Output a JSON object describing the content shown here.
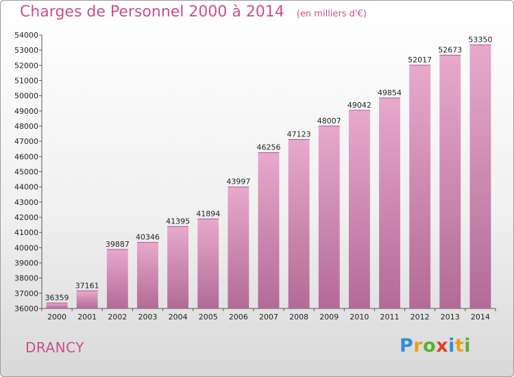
{
  "title": "Charges de Personnel 2000 à 2014",
  "unit_note": "(en milliers d'€)",
  "commune": "DRANCY",
  "logo": {
    "letters": [
      "P",
      "r",
      "o",
      "x",
      "i",
      "t",
      "i"
    ],
    "colors": [
      "#2a8fd6",
      "#e8a21a",
      "#58b030",
      "#e83a2a",
      "#2a8fd6",
      "#e8a21a",
      "#58b030"
    ]
  },
  "colors": {
    "title": "#c8508a",
    "bar_light": "#e8a9cc",
    "bar_dark": "#b26b96"
  },
  "chart_data": {
    "type": "bar",
    "title": "Charges de Personnel 2000 à 2014",
    "subtitle": "(en milliers d'€)",
    "categories": [
      "2000",
      "2001",
      "2002",
      "2003",
      "2004",
      "2005",
      "2006",
      "2007",
      "2008",
      "2009",
      "2010",
      "2011",
      "2012",
      "2013",
      "2014"
    ],
    "values": [
      36359,
      37161,
      39887,
      40346,
      41395,
      41894,
      43997,
      46256,
      47123,
      48007,
      49042,
      49854,
      52017,
      52673,
      53350
    ],
    "ylim": [
      36000,
      54000
    ],
    "yticks": [
      36000,
      37000,
      38000,
      39000,
      40000,
      41000,
      42000,
      43000,
      44000,
      45000,
      46000,
      47000,
      48000,
      49000,
      50000,
      51000,
      52000,
      53000,
      54000
    ],
    "grid": false,
    "data_labels": true
  }
}
